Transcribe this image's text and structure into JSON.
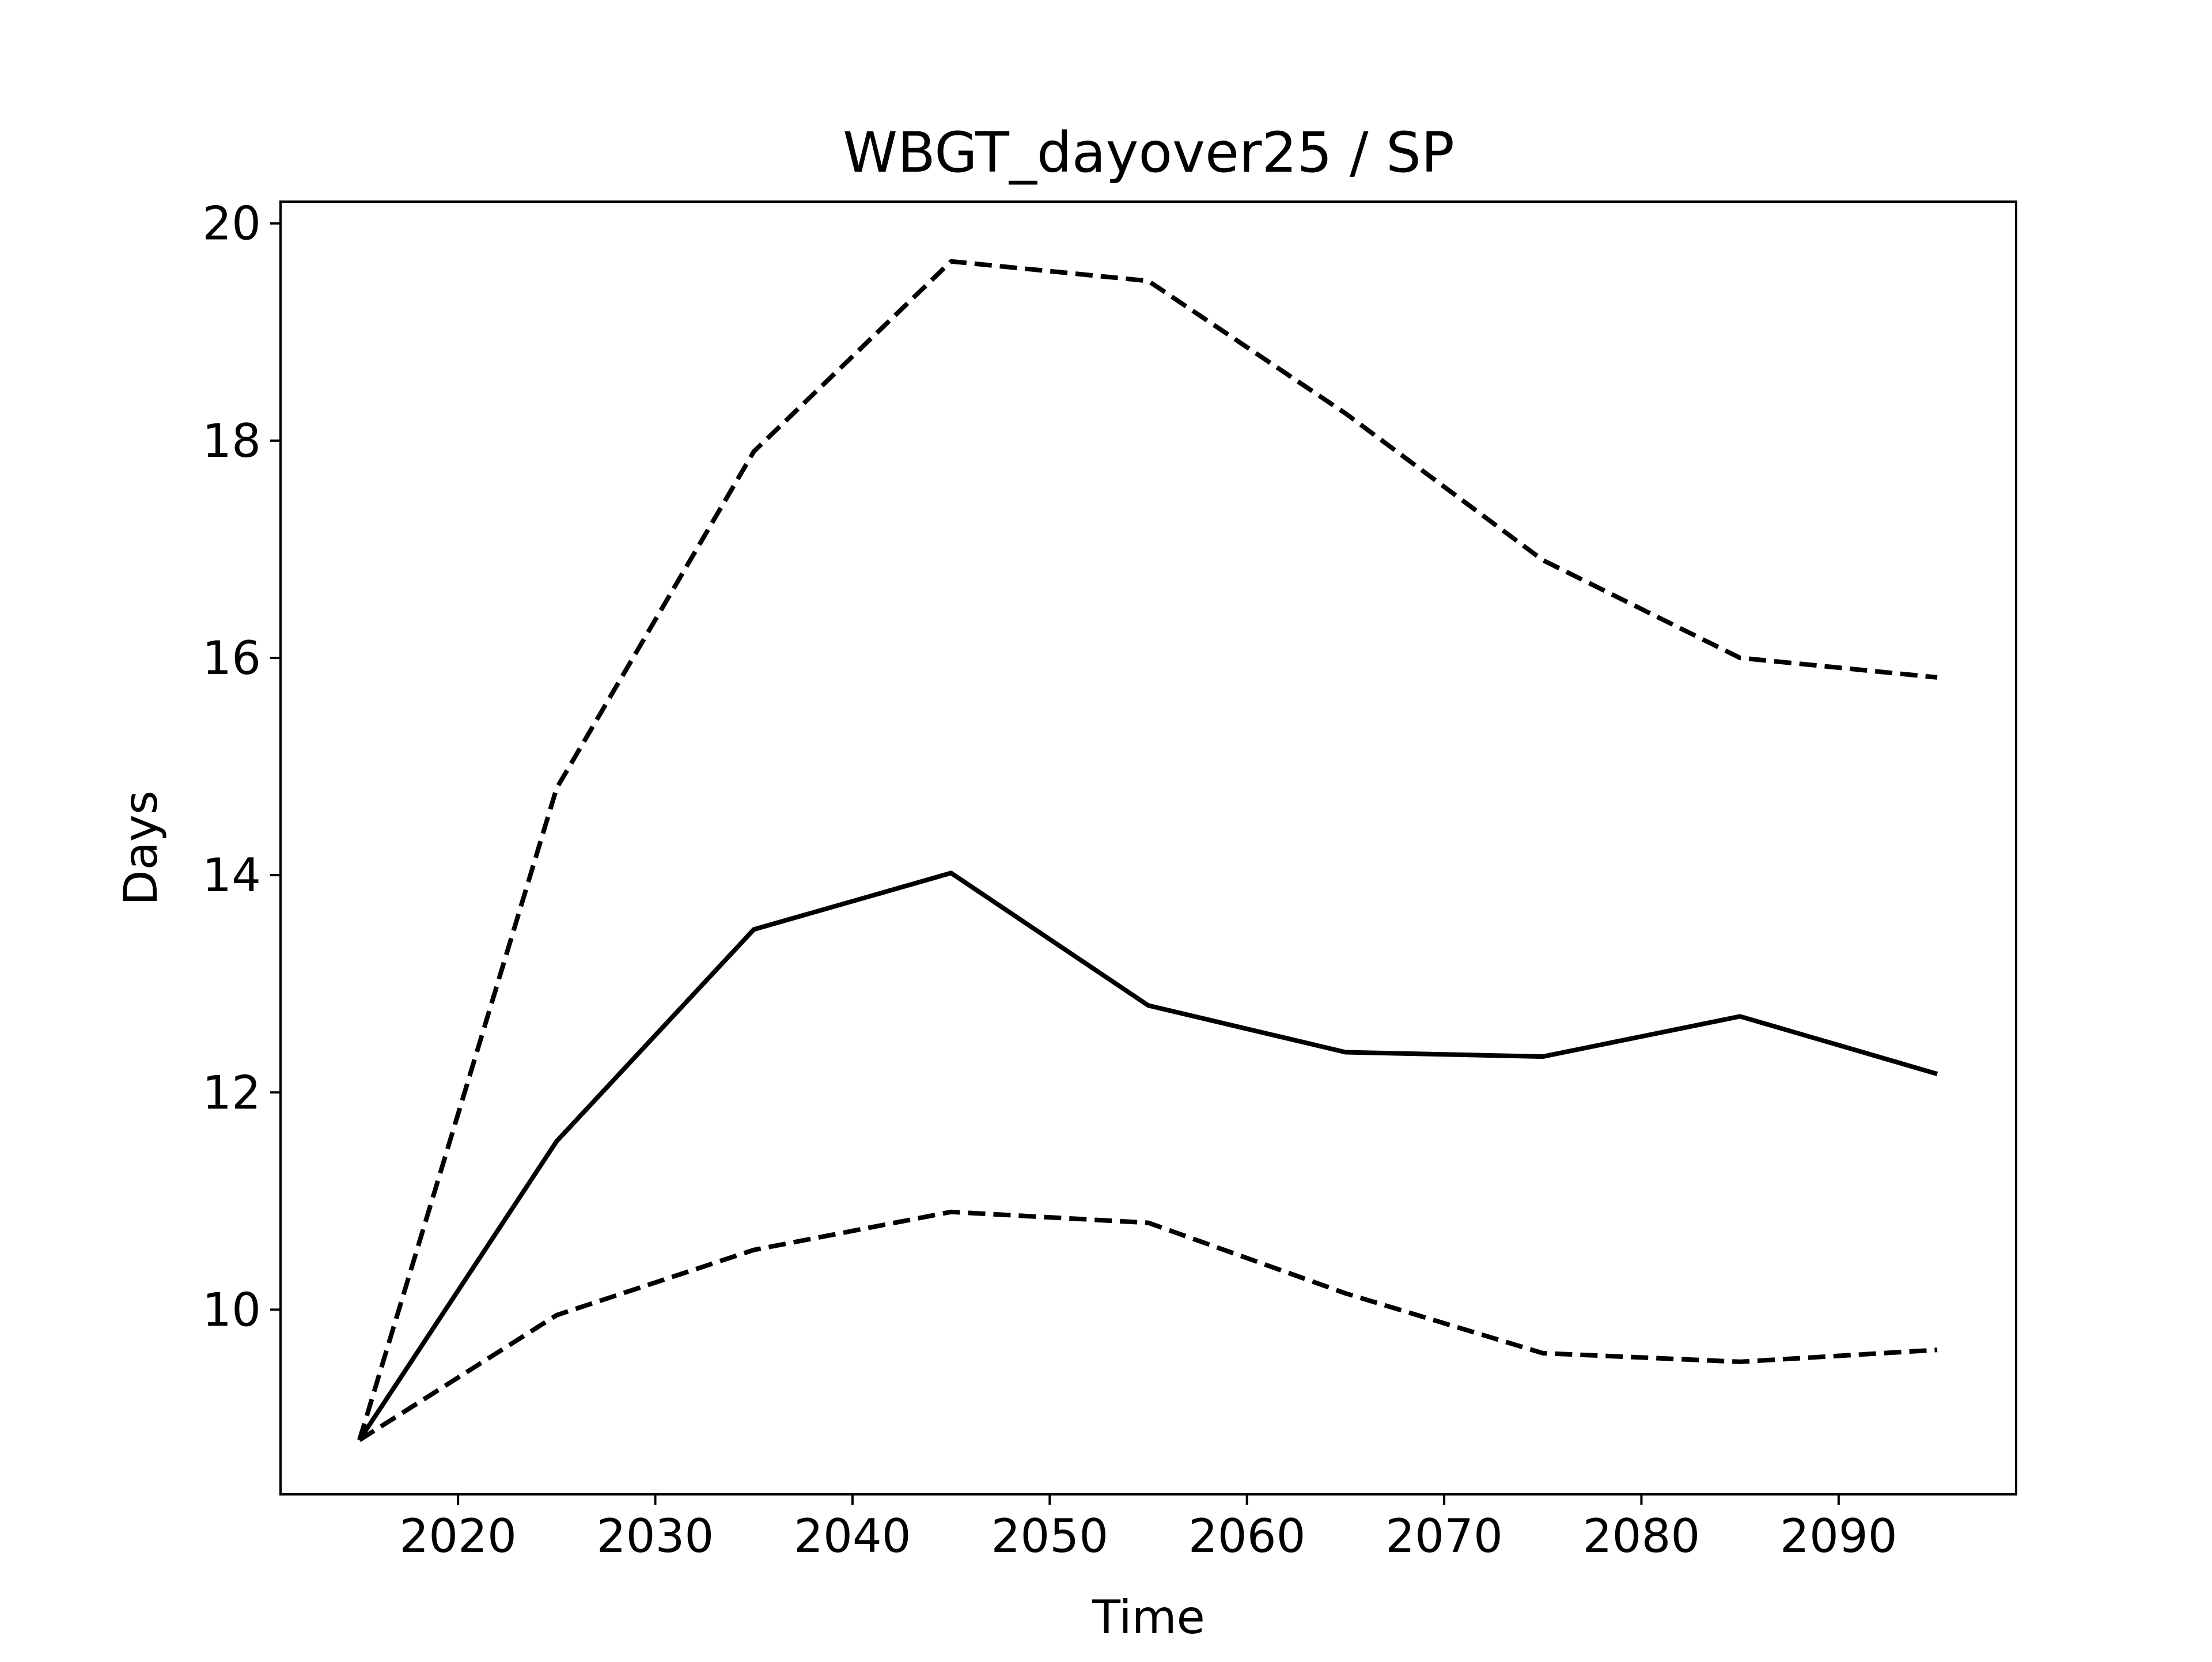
{
  "chart_data": {
    "type": "line",
    "title": "WBGT_dayover25 / SP",
    "xlabel": "Time",
    "ylabel": "Days",
    "x": [
      2015,
      2025,
      2035,
      2045,
      2055,
      2065,
      2075,
      2085,
      2095
    ],
    "xlim": [
      2011,
      2099
    ],
    "ylim": [
      8.3,
      20.2
    ],
    "xticks": [
      2020,
      2030,
      2040,
      2050,
      2060,
      2070,
      2080,
      2090
    ],
    "yticks": [
      10,
      12,
      14,
      16,
      18,
      20
    ],
    "grid": false,
    "series": [
      {
        "style": "dashed",
        "color": "#000000",
        "values": [
          8.8,
          14.8,
          17.9,
          19.65,
          19.47,
          18.25,
          16.9,
          16.0,
          15.82
        ]
      },
      {
        "style": "solid",
        "color": "#000000",
        "values": [
          8.8,
          11.55,
          13.5,
          14.02,
          12.8,
          12.37,
          12.33,
          12.7,
          12.17
        ]
      },
      {
        "style": "dashed",
        "color": "#000000",
        "values": [
          8.8,
          9.95,
          10.55,
          10.9,
          10.8,
          10.15,
          9.6,
          9.52,
          9.63
        ]
      }
    ]
  }
}
